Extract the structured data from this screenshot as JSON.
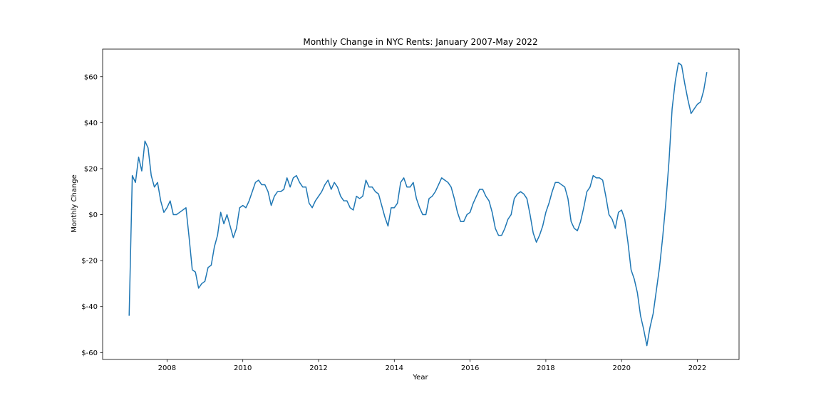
{
  "chart_data": {
    "type": "line",
    "title": "Monthly Change in NYC Rents: January 2007-May 2022",
    "xlabel": "Year",
    "ylabel": "Monthly Change",
    "xlim": [
      2006.3,
      2023.1
    ],
    "ylim": [
      -63,
      72
    ],
    "x_ticks": [
      {
        "value": 2008,
        "label": "2008"
      },
      {
        "value": 2010,
        "label": "2010"
      },
      {
        "value": 2012,
        "label": "2012"
      },
      {
        "value": 2014,
        "label": "2014"
      },
      {
        "value": 2016,
        "label": "2016"
      },
      {
        "value": 2018,
        "label": "2018"
      },
      {
        "value": 2020,
        "label": "2020"
      },
      {
        "value": 2022,
        "label": "2022"
      }
    ],
    "y_ticks": [
      {
        "value": 60,
        "label": "$60"
      },
      {
        "value": 40,
        "label": "$40"
      },
      {
        "value": 20,
        "label": "$20"
      },
      {
        "value": 0,
        "label": "$0"
      },
      {
        "value": -20,
        "label": "$-20"
      },
      {
        "value": -40,
        "label": "$-40"
      },
      {
        "value": -60,
        "label": "$-60"
      }
    ],
    "grid": false,
    "legend": "none",
    "line_color": "#1f77b4",
    "series": [
      {
        "start": "2007-01",
        "values": [
          -44,
          17,
          14,
          25,
          19,
          32,
          29,
          17,
          12,
          14,
          6,
          1,
          3,
          6,
          0,
          0,
          1,
          2,
          3,
          -10,
          -24,
          -25,
          -32,
          -30,
          -29,
          -23,
          -22,
          -14,
          -9,
          1,
          -4,
          0,
          -5,
          -10,
          -6,
          3,
          4,
          3,
          6,
          10,
          14,
          15,
          13,
          13,
          10,
          4,
          8,
          10,
          10,
          11,
          16,
          12,
          16,
          17,
          14,
          12,
          12,
          5,
          3,
          6,
          8,
          10,
          13,
          15,
          11,
          14,
          12,
          8,
          6,
          6,
          3,
          2,
          8,
          7,
          8,
          15,
          12,
          12,
          10,
          9,
          4,
          -1,
          -5,
          3,
          3,
          5,
          14,
          16,
          12,
          12,
          14,
          7,
          3,
          0,
          0,
          7,
          8,
          10,
          13,
          16,
          15,
          14,
          12,
          7,
          1,
          -3,
          -3,
          0,
          1,
          5,
          8,
          11,
          11,
          8,
          6,
          1,
          -6,
          -9,
          -9,
          -6,
          -2,
          0,
          7,
          9,
          10,
          9,
          7,
          0,
          -8,
          -12,
          -9,
          -5,
          1,
          5,
          10,
          14,
          14,
          13,
          12,
          7,
          -3,
          -6,
          -7,
          -3,
          3,
          10,
          12,
          17,
          16,
          16,
          15,
          8,
          0,
          -2,
          -6,
          1,
          2,
          -2,
          -12,
          -24,
          -28,
          -34,
          -44,
          -50,
          -57,
          -49,
          -43,
          -33,
          -23,
          -10,
          5,
          23,
          46,
          58,
          66,
          65,
          57,
          50,
          44,
          46,
          48,
          49,
          54,
          62
        ]
      }
    ]
  }
}
